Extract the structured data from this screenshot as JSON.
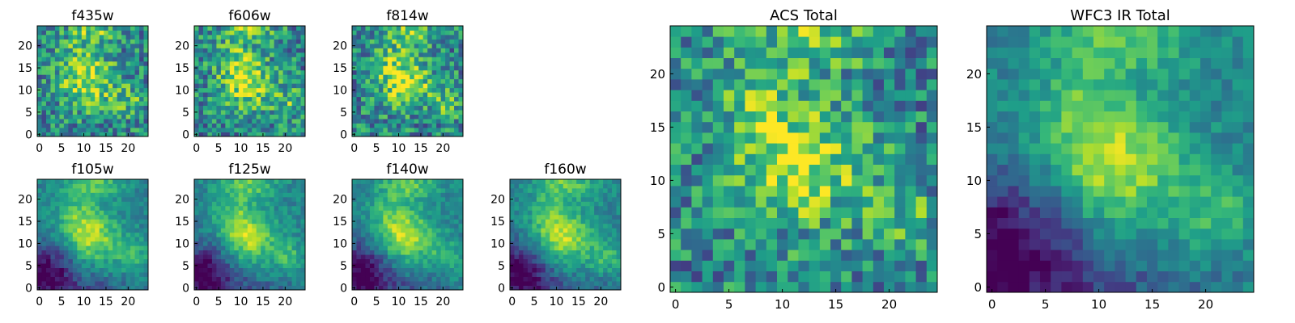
{
  "colormap": [
    "#440154",
    "#482878",
    "#3e4989",
    "#31688e",
    "#26828e",
    "#1f9e89",
    "#35b779",
    "#6ece58",
    "#b5de2b",
    "#fde725"
  ],
  "chart_data": [
    {
      "type": "heatmap",
      "title": "f435w",
      "x_ticks": [
        0,
        5,
        10,
        15,
        20
      ],
      "y_ticks": [
        0,
        5,
        10,
        15,
        20
      ],
      "xlim": [
        -0.5,
        24.5
      ],
      "ylim": [
        -0.5,
        24.5
      ],
      "grid_size": 25,
      "dark_corner": false
    },
    {
      "type": "heatmap",
      "title": "f606w",
      "x_ticks": [
        0,
        5,
        10,
        15,
        20
      ],
      "y_ticks": [
        0,
        5,
        10,
        15,
        20
      ],
      "xlim": [
        -0.5,
        24.5
      ],
      "ylim": [
        -0.5,
        24.5
      ],
      "grid_size": 25,
      "dark_corner": false
    },
    {
      "type": "heatmap",
      "title": "f814w",
      "x_ticks": [
        0,
        5,
        10,
        15,
        20
      ],
      "y_ticks": [
        0,
        5,
        10,
        15,
        20
      ],
      "xlim": [
        -0.5,
        24.5
      ],
      "ylim": [
        -0.5,
        24.5
      ],
      "grid_size": 25,
      "dark_corner": false
    },
    {
      "type": "heatmap",
      "title": "f105w",
      "x_ticks": [
        0,
        5,
        10,
        15,
        20
      ],
      "y_ticks": [
        0,
        5,
        10,
        15,
        20
      ],
      "xlim": [
        -0.5,
        24.5
      ],
      "ylim": [
        -0.5,
        24.5
      ],
      "grid_size": 25,
      "dark_corner": true
    },
    {
      "type": "heatmap",
      "title": "f125w",
      "x_ticks": [
        0,
        5,
        10,
        15,
        20
      ],
      "y_ticks": [
        0,
        5,
        10,
        15,
        20
      ],
      "xlim": [
        -0.5,
        24.5
      ],
      "ylim": [
        -0.5,
        24.5
      ],
      "grid_size": 25,
      "dark_corner": true
    },
    {
      "type": "heatmap",
      "title": "f140w",
      "x_ticks": [
        0,
        5,
        10,
        15,
        20
      ],
      "y_ticks": [
        0,
        5,
        10,
        15,
        20
      ],
      "xlim": [
        -0.5,
        24.5
      ],
      "ylim": [
        -0.5,
        24.5
      ],
      "grid_size": 25,
      "dark_corner": true
    },
    {
      "type": "heatmap",
      "title": "f160w",
      "x_ticks": [
        0,
        5,
        10,
        15,
        20
      ],
      "y_ticks": [
        0,
        5,
        10,
        15,
        20
      ],
      "xlim": [
        -0.5,
        24.5
      ],
      "ylim": [
        -0.5,
        24.5
      ],
      "grid_size": 25,
      "dark_corner": true
    },
    {
      "type": "heatmap",
      "title": "ACS Total",
      "x_ticks": [
        0,
        5,
        10,
        15,
        20
      ],
      "y_ticks": [
        0,
        5,
        10,
        15,
        20
      ],
      "xlim": [
        -0.5,
        24.5
      ],
      "ylim": [
        -0.5,
        24.5
      ],
      "grid_size": 25,
      "dark_corner": false
    },
    {
      "type": "heatmap",
      "title": "WFC3 IR Total",
      "x_ticks": [
        0,
        5,
        10,
        15,
        20
      ],
      "y_ticks": [
        0,
        5,
        10,
        15,
        20
      ],
      "xlim": [
        -0.5,
        24.5
      ],
      "ylim": [
        -0.5,
        24.5
      ],
      "grid_size": 25,
      "dark_corner": true
    }
  ]
}
